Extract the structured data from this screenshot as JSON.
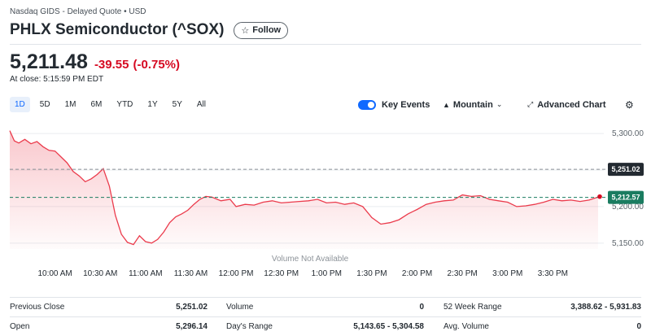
{
  "header": {
    "exchange": "Nasdaq GIDS - Delayed Quote • USD",
    "title": "PHLX Semiconductor (^SOX)",
    "follow_label": "Follow"
  },
  "quote": {
    "price": "5,211.48",
    "change": "-39.55",
    "change_pct": "(-0.75%)",
    "at_close": "At close: 5:15:59 PM EDT"
  },
  "ranges": [
    "1D",
    "5D",
    "1M",
    "6M",
    "YTD",
    "1Y",
    "5Y",
    "All"
  ],
  "active_range": "1D",
  "tools": {
    "key_events_label": "Key Events",
    "key_events_on": true,
    "chart_type_label": "Mountain",
    "advanced_label": "Advanced Chart"
  },
  "colors": {
    "line": "#eb3b4c",
    "prev_close_tag": "#232a31",
    "current_tag": "#1a7c60",
    "accent": "#0f69ff",
    "negative": "#d60a22"
  },
  "chart_data": {
    "type": "area",
    "ylim": [
      5142,
      5318
    ],
    "y_ticks": [
      5300,
      5250,
      5200,
      5150
    ],
    "y_tick_labels": [
      "5,300.00",
      "5,250.00",
      "5,200.00",
      "5,150.00"
    ],
    "x_ticks": [
      "9:30",
      "10:00",
      "10:30",
      "11:00",
      "11:30",
      "12:00",
      "12:30",
      "13:00",
      "13:30",
      "14:00",
      "14:30",
      "15:00",
      "15:30",
      "16:00"
    ],
    "x_tick_labels": [
      "10:00 AM",
      "10:30 AM",
      "11:00 AM",
      "11:30 AM",
      "12:00 PM",
      "12:30 PM",
      "1:00 PM",
      "1:30 PM",
      "2:00 PM",
      "2:30 PM",
      "3:00 PM",
      "3:30 PM"
    ],
    "previous_close": 5251.02,
    "previous_close_label": "5,251.02",
    "current": 5212.57,
    "current_label": "5,212.57",
    "annotation": "Volume Not Available",
    "series": [
      {
        "x": [
          "9:30",
          "9:33",
          "9:36",
          "9:40",
          "9:44",
          "9:48",
          "9:52",
          "9:56",
          "10:00",
          "10:04",
          "10:08",
          "10:12",
          "10:16",
          "10:20",
          "10:24",
          "10:28",
          "10:32",
          "10:36",
          "10:40",
          "10:44",
          "10:48",
          "10:52",
          "10:56",
          "11:00",
          "11:04",
          "11:08",
          "11:12",
          "11:16",
          "11:20",
          "11:24",
          "11:28",
          "11:32",
          "11:36",
          "11:40",
          "11:44",
          "11:50",
          "11:56",
          "12:00",
          "12:06",
          "12:12",
          "12:18",
          "12:24",
          "12:30",
          "12:36",
          "12:42",
          "12:48",
          "12:54",
          "13:00",
          "13:06",
          "13:12",
          "13:18",
          "13:24",
          "13:30",
          "13:36",
          "13:42",
          "13:48",
          "13:54",
          "14:00",
          "14:06",
          "14:12",
          "14:18",
          "14:24",
          "14:30",
          "14:36",
          "14:42",
          "14:48",
          "14:54",
          "15:00",
          "15:06",
          "15:12",
          "15:18",
          "15:24",
          "15:30",
          "15:36",
          "15:42",
          "15:48",
          "15:54",
          "16:00"
        ],
        "values": [
          5304,
          5290,
          5287,
          5292,
          5286,
          5289,
          5282,
          5277,
          5276,
          5268,
          5260,
          5248,
          5242,
          5234,
          5238,
          5244,
          5252,
          5228,
          5188,
          5162,
          5151,
          5148,
          5160,
          5152,
          5150,
          5155,
          5165,
          5178,
          5186,
          5190,
          5195,
          5203,
          5210,
          5214,
          5213,
          5208,
          5210,
          5200,
          5203,
          5202,
          5206,
          5208,
          5205,
          5206,
          5207,
          5208,
          5210,
          5205,
          5206,
          5203,
          5205,
          5200,
          5185,
          5176,
          5178,
          5182,
          5190,
          5196,
          5203,
          5206,
          5208,
          5209,
          5216,
          5214,
          5215,
          5210,
          5208,
          5206,
          5200,
          5201,
          5203,
          5206,
          5210,
          5208,
          5209,
          5207,
          5209,
          5213
        ]
      }
    ]
  },
  "stats": [
    [
      {
        "label": "Previous Close",
        "value": "5,251.02"
      },
      {
        "label": "Volume",
        "value": "0"
      },
      {
        "label": "52 Week Range",
        "value": "3,388.62 - 5,931.83"
      }
    ],
    [
      {
        "label": "Open",
        "value": "5,296.14"
      },
      {
        "label": "Day's Range",
        "value": "5,143.65 - 5,304.58"
      },
      {
        "label": "Avg. Volume",
        "value": "0"
      }
    ]
  ]
}
